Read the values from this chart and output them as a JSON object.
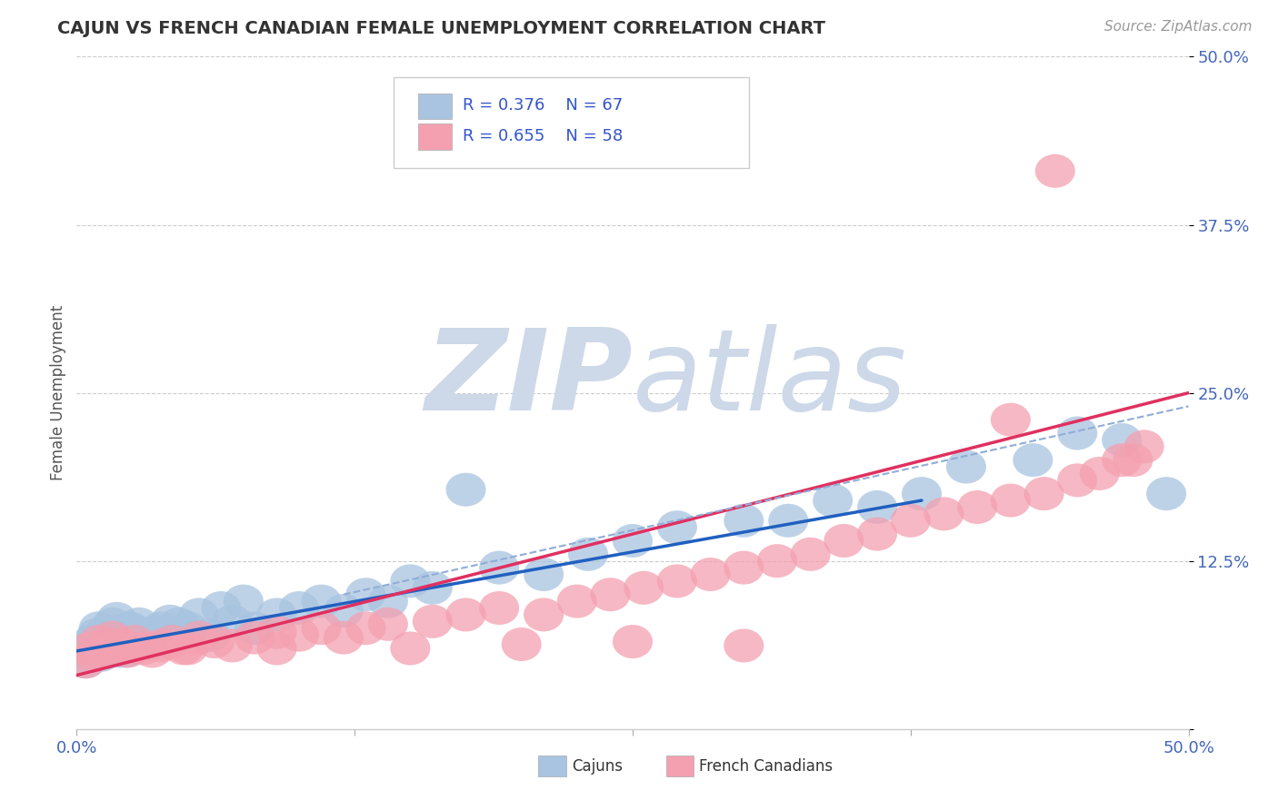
{
  "title": "CAJUN VS FRENCH CANADIAN FEMALE UNEMPLOYMENT CORRELATION CHART",
  "source": "Source: ZipAtlas.com",
  "ylabel": "Female Unemployment",
  "xlim": [
    0.0,
    0.5
  ],
  "ylim": [
    0.0,
    0.5
  ],
  "cajun_R": 0.376,
  "cajun_N": 67,
  "french_R": 0.655,
  "french_N": 58,
  "cajun_color": "#a8c4e0",
  "french_color": "#f4a0b0",
  "cajun_line_color": "#2060c0",
  "french_line_color": "#e03060",
  "dashed_line_color": "#90acd8",
  "background_color": "#ffffff",
  "grid_color": "#cccccc",
  "watermark_color": "#cdd8e8",
  "title_color": "#333333",
  "axis_label_color": "#4466bb",
  "legend_text_color": "#3355cc",
  "cajun_x": [
    0.004,
    0.005,
    0.006,
    0.007,
    0.008,
    0.009,
    0.01,
    0.01,
    0.011,
    0.012,
    0.013,
    0.014,
    0.015,
    0.016,
    0.017,
    0.018,
    0.019,
    0.02,
    0.021,
    0.022,
    0.023,
    0.024,
    0.025,
    0.026,
    0.027,
    0.028,
    0.029,
    0.03,
    0.032,
    0.034,
    0.036,
    0.038,
    0.04,
    0.042,
    0.044,
    0.046,
    0.05,
    0.055,
    0.06,
    0.065,
    0.07,
    0.075,
    0.08,
    0.09,
    0.1,
    0.11,
    0.12,
    0.13,
    0.14,
    0.15,
    0.16,
    0.175,
    0.19,
    0.21,
    0.23,
    0.25,
    0.27,
    0.3,
    0.32,
    0.34,
    0.36,
    0.38,
    0.4,
    0.43,
    0.45,
    0.47,
    0.49
  ],
  "cajun_y": [
    0.05,
    0.06,
    0.055,
    0.065,
    0.06,
    0.07,
    0.065,
    0.075,
    0.055,
    0.068,
    0.072,
    0.058,
    0.063,
    0.078,
    0.068,
    0.082,
    0.058,
    0.073,
    0.062,
    0.058,
    0.068,
    0.075,
    0.06,
    0.072,
    0.065,
    0.078,
    0.062,
    0.07,
    0.068,
    0.065,
    0.072,
    0.075,
    0.065,
    0.08,
    0.07,
    0.078,
    0.075,
    0.085,
    0.07,
    0.09,
    0.08,
    0.095,
    0.075,
    0.085,
    0.09,
    0.095,
    0.088,
    0.1,
    0.095,
    0.11,
    0.105,
    0.178,
    0.12,
    0.115,
    0.13,
    0.14,
    0.15,
    0.155,
    0.155,
    0.17,
    0.165,
    0.175,
    0.195,
    0.2,
    0.22,
    0.215,
    0.175
  ],
  "french_x": [
    0.004,
    0.006,
    0.008,
    0.01,
    0.012,
    0.014,
    0.016,
    0.018,
    0.02,
    0.023,
    0.026,
    0.03,
    0.034,
    0.038,
    0.043,
    0.048,
    0.055,
    0.062,
    0.07,
    0.08,
    0.09,
    0.1,
    0.11,
    0.12,
    0.13,
    0.14,
    0.16,
    0.175,
    0.19,
    0.21,
    0.225,
    0.24,
    0.255,
    0.27,
    0.285,
    0.3,
    0.315,
    0.33,
    0.345,
    0.36,
    0.375,
    0.39,
    0.405,
    0.42,
    0.435,
    0.45,
    0.46,
    0.47,
    0.475,
    0.48,
    0.05,
    0.09,
    0.15,
    0.2,
    0.25,
    0.3,
    0.42,
    0.44
  ],
  "french_y": [
    0.05,
    0.06,
    0.055,
    0.065,
    0.058,
    0.062,
    0.068,
    0.06,
    0.063,
    0.058,
    0.065,
    0.06,
    0.058,
    0.062,
    0.065,
    0.06,
    0.068,
    0.065,
    0.062,
    0.068,
    0.072,
    0.07,
    0.075,
    0.068,
    0.075,
    0.078,
    0.08,
    0.085,
    0.09,
    0.085,
    0.095,
    0.1,
    0.105,
    0.11,
    0.115,
    0.12,
    0.125,
    0.13,
    0.14,
    0.145,
    0.155,
    0.16,
    0.165,
    0.17,
    0.175,
    0.185,
    0.19,
    0.2,
    0.2,
    0.21,
    0.06,
    0.06,
    0.06,
    0.063,
    0.065,
    0.062,
    0.23,
    0.415
  ],
  "blue_line_x": [
    0.0,
    0.38
  ],
  "blue_line_y": [
    0.058,
    0.17
  ],
  "pink_line_x": [
    0.0,
    0.5
  ],
  "pink_line_y": [
    0.04,
    0.25
  ],
  "dashed_line_x": [
    0.12,
    0.5
  ],
  "dashed_line_y": [
    0.1,
    0.24
  ]
}
